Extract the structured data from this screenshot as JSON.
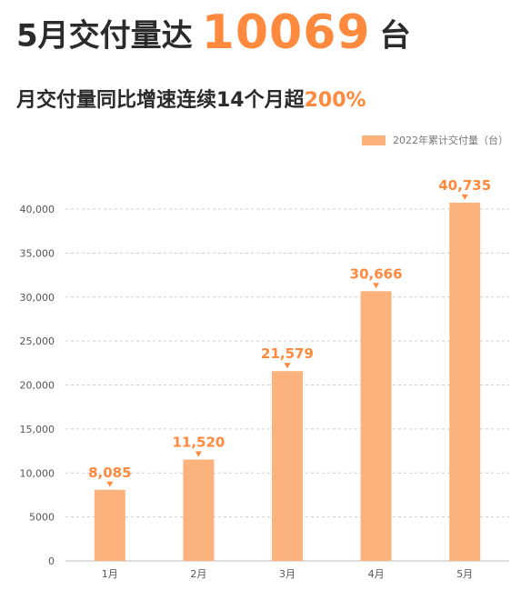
{
  "header": {
    "title_prefix": "5月交付量达",
    "title_number": "10069",
    "title_suffix": "台",
    "subtitle_main": "月交付量同比增速连续14个月超",
    "subtitle_accent": "200%"
  },
  "colors": {
    "accent": "#ff8a3d",
    "bar": "#fbb27c",
    "text": "#2b2b2b"
  },
  "chart_data": {
    "type": "bar",
    "categories": [
      "1月",
      "2月",
      "3月",
      "4月",
      "5月"
    ],
    "series": [
      {
        "name": "2022年累计交付量（台）",
        "values": [
          8085,
          11520,
          21579,
          30666,
          40735
        ]
      }
    ],
    "value_labels": [
      "8,085",
      "11,520",
      "21,579",
      "30,666",
      "40,735"
    ],
    "yticks": [
      0,
      5000,
      10000,
      15000,
      20000,
      25000,
      30000,
      35000,
      40000
    ],
    "ytick_labels": [
      "0",
      "5000",
      "10,000",
      "15,000",
      "20,000",
      "25,000",
      "30,000",
      "35,000",
      "40,000"
    ],
    "ylim": [
      0,
      40000
    ],
    "grid": true,
    "legend_position": "top-right"
  }
}
